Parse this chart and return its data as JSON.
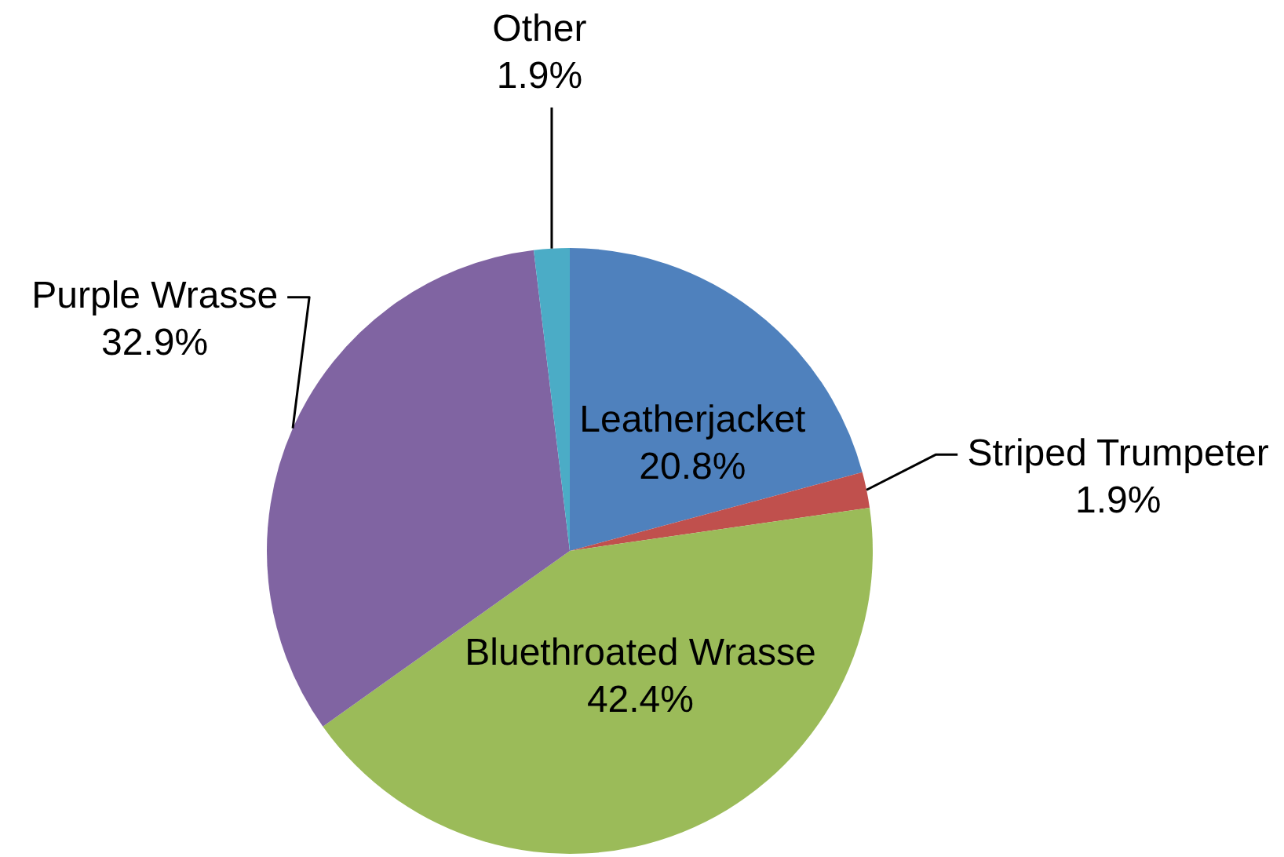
{
  "chart_data": {
    "type": "pie",
    "categories": [
      "Leatherjacket",
      "Striped Trumpeter",
      "Bluethroated Wrasse",
      "Purple Wrasse",
      "Other"
    ],
    "values": [
      20.8,
      1.9,
      42.4,
      32.9,
      1.9
    ],
    "colors": [
      "#4f81bd",
      "#c0504d",
      "#9bbb59",
      "#8064a2",
      "#4bacc6"
    ],
    "value_labels": [
      "20.8%",
      "1.9%",
      "42.4%",
      "32.9%",
      "1.9%"
    ]
  }
}
